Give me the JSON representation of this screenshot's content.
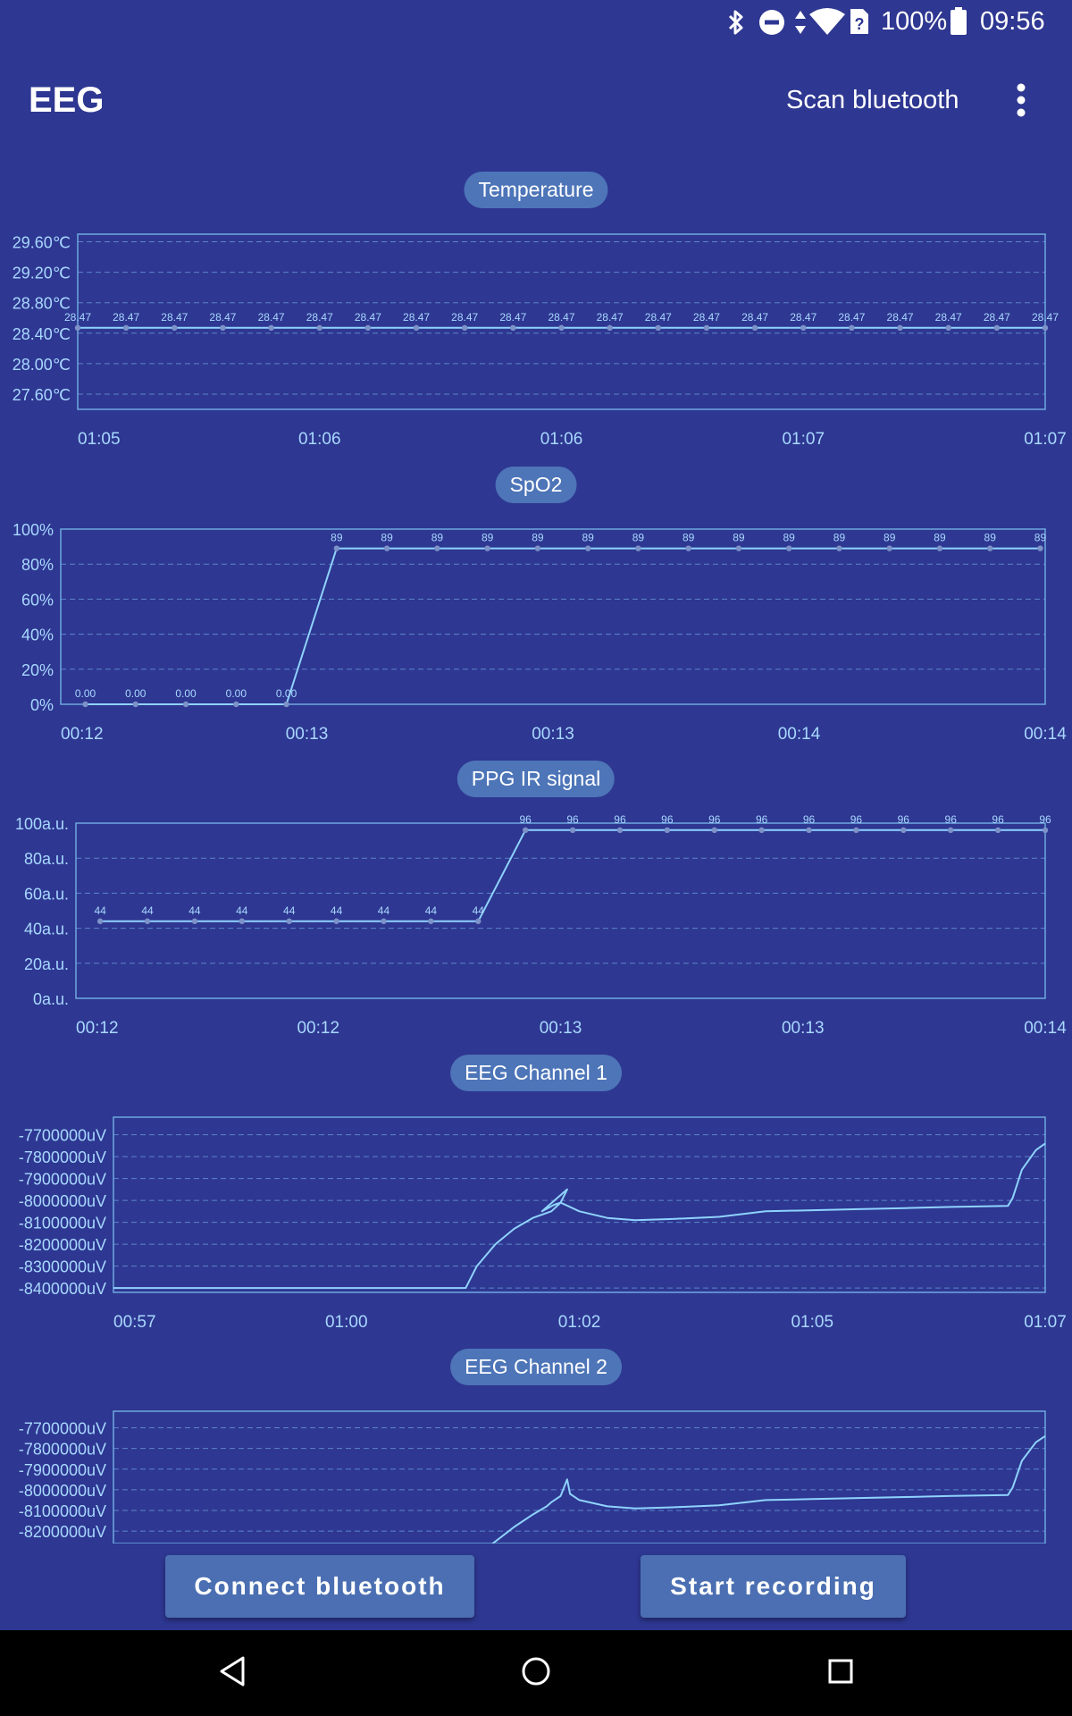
{
  "status_bar": {
    "battery": "100%",
    "time": "09:56"
  },
  "app_bar": {
    "title": "EEG",
    "scan_label": "Scan bluetooth"
  },
  "colors": {
    "background": "#2e3791",
    "line": "#8fd3ff",
    "chip": "#4d75b8",
    "button": "#4b6fb2"
  },
  "icons": [
    "bluetooth-icon",
    "do-not-disturb-icon",
    "data-arrows-icon",
    "wifi-icon",
    "sim-icon",
    "battery-icon",
    "more-vert-icon",
    "nav-back-icon",
    "nav-home-icon",
    "nav-recents-icon"
  ],
  "buttons": {
    "connect": "Connect bluetooth",
    "record": "Start recording"
  },
  "charts": [
    {
      "title": "Temperature"
    },
    {
      "title": "SpO2"
    },
    {
      "title": "PPG IR signal"
    },
    {
      "title": "EEG Channel 1"
    },
    {
      "title": "EEG Channel 2"
    }
  ],
  "chart_data": [
    {
      "type": "line",
      "title": "Temperature",
      "ylim": [
        27.4,
        29.7
      ],
      "y_ticks": [
        "29.60℃",
        "29.20℃",
        "28.80℃",
        "28.40℃",
        "28.00℃",
        "27.60℃"
      ],
      "y_tick_values": [
        29.6,
        29.2,
        28.8,
        28.4,
        28.0,
        27.6
      ],
      "x_ticks": [
        "01:05",
        "01:06",
        "01:06",
        "01:07",
        "01:07"
      ],
      "x": [
        0,
        1,
        2,
        3,
        4,
        5,
        6,
        7,
        8,
        9,
        10,
        11,
        12,
        13,
        14,
        15,
        16,
        17,
        18,
        19,
        20
      ],
      "values": [
        28.47,
        28.47,
        28.47,
        28.47,
        28.47,
        28.47,
        28.47,
        28.47,
        28.47,
        28.47,
        28.47,
        28.47,
        28.47,
        28.47,
        28.47,
        28.47,
        28.47,
        28.47,
        28.47,
        28.47,
        28.47
      ],
      "point_labels": [
        "28.47",
        "28.47",
        "28.47",
        "28.47",
        "28.47",
        "28.47",
        "28.47",
        "28.47",
        "28.47",
        "28.47",
        "28.47",
        "28.47",
        "28.47",
        "28.47",
        "28.47",
        "28.47",
        "28.47",
        "28.47",
        "28.47",
        "28.47",
        "28.47"
      ],
      "grid": true
    },
    {
      "type": "line",
      "title": "SpO2",
      "ylim": [
        0,
        100
      ],
      "y_ticks": [
        "100%",
        "80%",
        "60%",
        "40%",
        "20%",
        "0%"
      ],
      "y_tick_values": [
        100,
        80,
        60,
        40,
        20,
        0
      ],
      "x_ticks": [
        "00:12",
        "00:13",
        "00:13",
        "00:14",
        "00:14"
      ],
      "x": [
        0,
        1,
        2,
        3,
        4,
        5,
        6,
        7,
        8,
        9,
        10,
        11,
        12,
        13,
        14,
        15,
        16,
        17,
        18,
        19
      ],
      "values": [
        0,
        0,
        0,
        0,
        0,
        89,
        89,
        89,
        89,
        89,
        89,
        89,
        89,
        89,
        89,
        89,
        89,
        89,
        89,
        89
      ],
      "point_labels": [
        "0.00",
        "0.00",
        "0.00",
        "0.00",
        "0.00",
        "89",
        "89",
        "89",
        "89",
        "89",
        "89",
        "89",
        "89",
        "89",
        "89",
        "89",
        "89",
        "89",
        "89",
        "89"
      ],
      "grid": true
    },
    {
      "type": "line",
      "title": "PPG IR signal",
      "ylim": [
        0,
        100
      ],
      "y_ticks": [
        "100a.u.",
        "80a.u.",
        "60a.u.",
        "40a.u.",
        "20a.u.",
        "0a.u."
      ],
      "y_tick_values": [
        100,
        80,
        60,
        40,
        20,
        0
      ],
      "x_ticks": [
        "00:12",
        "00:12",
        "00:13",
        "00:13",
        "00:14"
      ],
      "x": [
        0,
        1,
        2,
        3,
        4,
        5,
        6,
        7,
        8,
        9,
        10,
        11,
        12,
        13,
        14,
        15,
        16,
        17,
        18,
        19,
        20
      ],
      "values": [
        44,
        44,
        44,
        44,
        44,
        44,
        44,
        44,
        44,
        96,
        96,
        96,
        96,
        96,
        96,
        96,
        96,
        96,
        96,
        96,
        96
      ],
      "point_labels": [
        "44",
        "44",
        "44",
        "44",
        "44",
        "44",
        "44",
        "44",
        "44",
        "96",
        "96",
        "96",
        "96",
        "96",
        "96",
        "96",
        "96",
        "96",
        "96",
        "96",
        "96"
      ],
      "grid": true
    },
    {
      "type": "line",
      "title": "EEG Channel 1",
      "ylim": [
        -8420000,
        -7620000
      ],
      "y_ticks": [
        "-7700000uV",
        "-7800000uV",
        "-7900000uV",
        "-8000000uV",
        "-8100000uV",
        "-8200000uV",
        "-8300000uV",
        "-8400000uV"
      ],
      "y_tick_values": [
        -7700000,
        -7800000,
        -7900000,
        -8000000,
        -8100000,
        -8200000,
        -8300000,
        -8400000
      ],
      "x_ticks": [
        "00:57",
        "01:00",
        "01:02",
        "01:05",
        "01:07"
      ],
      "x": [
        0,
        0.1,
        0.2,
        0.3,
        0.378,
        0.39,
        0.41,
        0.43,
        0.45,
        0.47,
        0.48,
        0.487,
        0.46,
        0.473,
        0.48,
        0.5,
        0.53,
        0.56,
        0.6,
        0.65,
        0.7,
        0.75,
        0.8,
        0.85,
        0.9,
        0.96,
        0.965,
        0.975,
        0.99,
        1.0
      ],
      "values": [
        -8400000,
        -8400000,
        -8400000,
        -8400000,
        -8400000,
        -8300000,
        -8200000,
        -8130000,
        -8080000,
        -8050000,
        -8010000,
        -7950000,
        -8050000,
        -8020000,
        -8010000,
        -8050000,
        -8080000,
        -8090000,
        -8085000,
        -8075000,
        -8050000,
        -8045000,
        -8040000,
        -8035000,
        -8030000,
        -8025000,
        -7990000,
        -7860000,
        -7770000,
        -7740000
      ],
      "grid": true
    },
    {
      "type": "line",
      "title": "EEG Channel 2",
      "ylim": [
        -8260000,
        -7620000
      ],
      "y_ticks": [
        "-7700000uV",
        "-7800000uV",
        "-7900000uV",
        "-8000000uV",
        "-8100000uV",
        "-8200000uV"
      ],
      "y_tick_values": [
        -7700000,
        -7800000,
        -7900000,
        -8000000,
        -8100000,
        -8200000
      ],
      "x_ticks": [],
      "x": [
        0.395,
        0.41,
        0.43,
        0.45,
        0.465,
        0.47,
        0.48,
        0.487,
        0.49,
        0.5,
        0.53,
        0.56,
        0.6,
        0.65,
        0.7,
        0.75,
        0.8,
        0.85,
        0.9,
        0.96,
        0.965,
        0.975,
        0.99,
        1.0
      ],
      "values": [
        -8300000,
        -8250000,
        -8180000,
        -8120000,
        -8080000,
        -8060000,
        -8030000,
        -7950000,
        -8020000,
        -8050000,
        -8080000,
        -8090000,
        -8085000,
        -8075000,
        -8050000,
        -8045000,
        -8040000,
        -8035000,
        -8030000,
        -8025000,
        -7990000,
        -7860000,
        -7770000,
        -7740000
      ],
      "grid": true
    }
  ]
}
